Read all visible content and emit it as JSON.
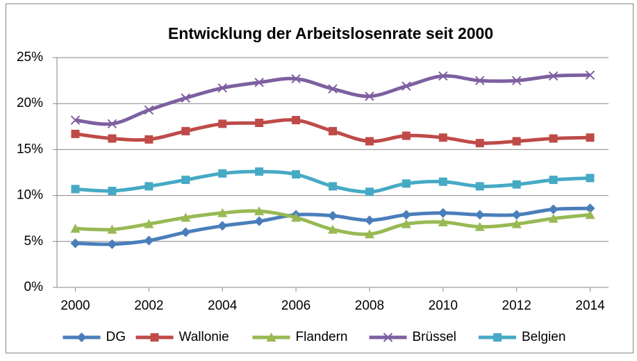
{
  "chart_data": {
    "type": "line",
    "title": "Entwicklung der Arbeitslosenrate seit 2000",
    "x": [
      2000,
      2001,
      2002,
      2003,
      2004,
      2005,
      2006,
      2007,
      2008,
      2009,
      2010,
      2011,
      2012,
      2013,
      2014
    ],
    "xlim": [
      1999.5,
      2014.5
    ],
    "xticks": [
      2000,
      2002,
      2004,
      2006,
      2008,
      2010,
      2012,
      2014
    ],
    "ylim": [
      0,
      25
    ],
    "yticks": [
      {
        "value": 0,
        "label": "0%"
      },
      {
        "value": 5,
        "label": "5%"
      },
      {
        "value": 10,
        "label": "10%"
      },
      {
        "value": 15,
        "label": "15%"
      },
      {
        "value": 20,
        "label": "20%"
      },
      {
        "value": 25,
        "label": "25%"
      }
    ],
    "grid": true,
    "legend": "bottom",
    "series": [
      {
        "name": "DG",
        "color": "#4a7ebb",
        "marker": "diamond",
        "values": [
          4.8,
          4.7,
          5.1,
          6.0,
          6.7,
          7.2,
          7.9,
          7.8,
          7.3,
          7.9,
          8.1,
          7.9,
          7.9,
          8.5,
          8.6
        ]
      },
      {
        "name": "Wallonie",
        "color": "#be4b48",
        "marker": "square",
        "values": [
          16.7,
          16.2,
          16.1,
          17.0,
          17.8,
          17.9,
          18.2,
          17.0,
          15.9,
          16.5,
          16.3,
          15.7,
          15.9,
          16.2,
          16.3
        ]
      },
      {
        "name": "Flandern",
        "color": "#98b954",
        "marker": "triangle",
        "values": [
          6.4,
          6.3,
          6.9,
          7.6,
          8.1,
          8.3,
          7.6,
          6.3,
          5.8,
          6.9,
          7.1,
          6.6,
          6.9,
          7.5,
          7.9
        ]
      },
      {
        "name": "Brüssel",
        "color": "#7d60a0",
        "marker": "x",
        "values": [
          18.2,
          17.8,
          19.3,
          20.6,
          21.7,
          22.3,
          22.7,
          21.6,
          20.8,
          21.9,
          23.0,
          22.5,
          22.5,
          23.0,
          23.1
        ]
      },
      {
        "name": "Belgien",
        "color": "#46aac5",
        "marker": "square",
        "values": [
          10.7,
          10.5,
          11.0,
          11.7,
          12.4,
          12.6,
          12.3,
          11.0,
          10.4,
          11.3,
          11.5,
          11.0,
          11.2,
          11.7,
          11.9
        ]
      }
    ]
  }
}
